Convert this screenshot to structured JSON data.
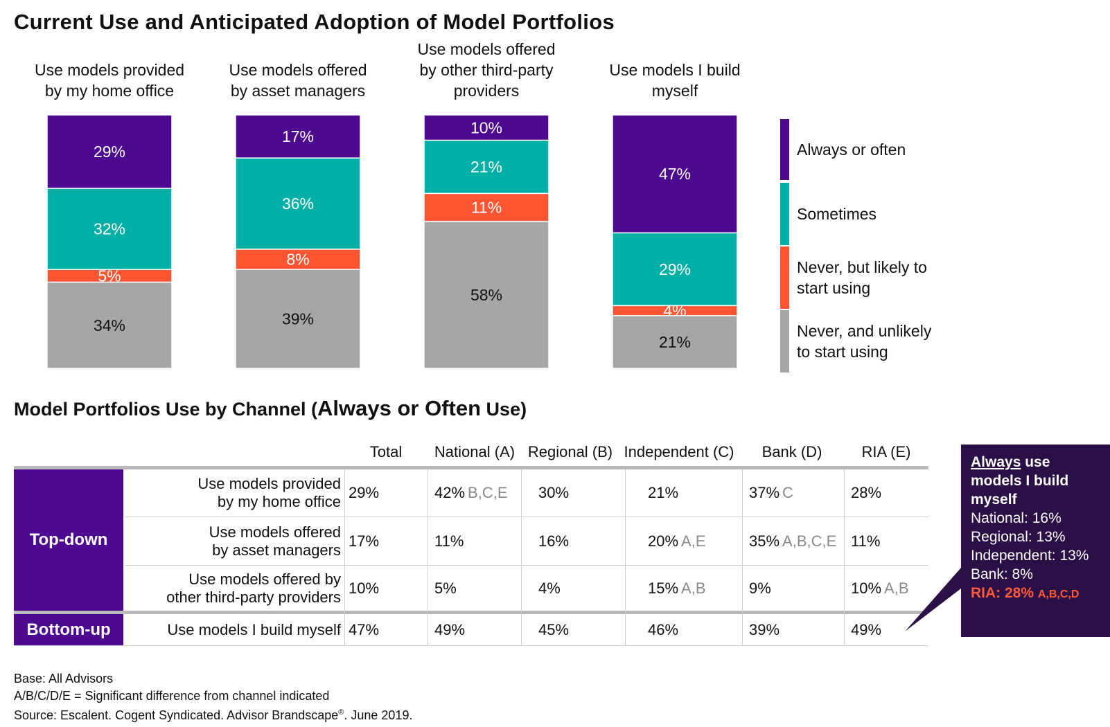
{
  "title": "Current Use and Anticipated Adoption of Model Portfolios",
  "chart_data": {
    "type": "bar",
    "stacked": true,
    "percent": true,
    "categories": [
      [
        "Use models provided",
        "by my home office"
      ],
      [
        "Use models offered",
        "by asset managers"
      ],
      [
        "Use models offered",
        "by other third-party",
        "providers"
      ],
      [
        "Use models I build",
        "myself"
      ]
    ],
    "series": [
      {
        "name": "Always or often",
        "color": "#4d0a91",
        "values": [
          29,
          17,
          10,
          47
        ]
      },
      {
        "name": "Sometimes",
        "color": "#00b0a6",
        "values": [
          32,
          36,
          21,
          29
        ]
      },
      {
        "name": "Never, but likely to start using",
        "color": "#ff5533",
        "values": [
          5,
          8,
          11,
          4
        ]
      },
      {
        "name": "Never, and unlikely to start using",
        "color": "#a6a6a6",
        "values": [
          34,
          39,
          58,
          21
        ]
      }
    ],
    "legend": {
      "placement": "right",
      "items": [
        [
          "Always or often"
        ],
        [
          "Sometimes"
        ],
        [
          "Never, but likely to",
          "start using"
        ],
        [
          "Never, and unlikely",
          "to start using"
        ]
      ]
    },
    "ylim": [
      0,
      100
    ]
  },
  "table": {
    "title_a": "Model Portfolios Use by Channel (",
    "title_b": "Always or Often",
    "title_c": " Use)",
    "columns": [
      "Total",
      "National (A)",
      "Regional (B)",
      "Independent (C)",
      "Bank (D)",
      "RIA (E)"
    ],
    "groups": [
      {
        "label": "Top-down"
      },
      {
        "label": "Bottom-up"
      }
    ],
    "rows": [
      {
        "label": [
          "Use models provided",
          "by my home office"
        ],
        "cells": [
          {
            "v": "29%",
            "s": ""
          },
          {
            "v": "42%",
            "s": "B,C,E"
          },
          {
            "v": "30%",
            "s": ""
          },
          {
            "v": "21%",
            "s": ""
          },
          {
            "v": "37%",
            "s": "C"
          },
          {
            "v": "28%",
            "s": ""
          }
        ]
      },
      {
        "label": [
          "Use models offered",
          "by asset managers"
        ],
        "cells": [
          {
            "v": "17%",
            "s": ""
          },
          {
            "v": "11%",
            "s": ""
          },
          {
            "v": "16%",
            "s": ""
          },
          {
            "v": "20%",
            "s": "A,E"
          },
          {
            "v": "35%",
            "s": "A,B,C,E"
          },
          {
            "v": "11%",
            "s": ""
          }
        ]
      },
      {
        "label": [
          "Use models offered by",
          "other third-party providers"
        ],
        "cells": [
          {
            "v": "10%",
            "s": ""
          },
          {
            "v": "5%",
            "s": ""
          },
          {
            "v": "4%",
            "s": ""
          },
          {
            "v": "15%",
            "s": "A,B"
          },
          {
            "v": "9%",
            "s": ""
          },
          {
            "v": "10%",
            "s": "A,B"
          }
        ]
      },
      {
        "label": [
          "Use models I build myself"
        ],
        "cells": [
          {
            "v": "47%",
            "s": ""
          },
          {
            "v": "49%",
            "s": ""
          },
          {
            "v": "45%",
            "s": ""
          },
          {
            "v": "46%",
            "s": ""
          },
          {
            "v": "39%",
            "s": ""
          },
          {
            "v": "49%",
            "s": ""
          }
        ]
      }
    ]
  },
  "callout": {
    "head_underlined": "Always",
    "head_rest_line1": " use",
    "head_line2": "models I build",
    "head_line3": "myself",
    "lines": [
      "National: 16%",
      "Regional: 13%",
      "Independent: 13%",
      "Bank: 8%"
    ],
    "ria": "RIA: 28%",
    "ria_sig": "A,B,C,D"
  },
  "footer": {
    "base": "Base: All Advisors",
    "legend": "A/B/C/D/E = Significant difference from channel indicated",
    "source_a": "Source: Escalent. Cogent Syndicated. Advisor Brandscape",
    "source_reg": "®",
    "source_b": ". June 2019."
  }
}
